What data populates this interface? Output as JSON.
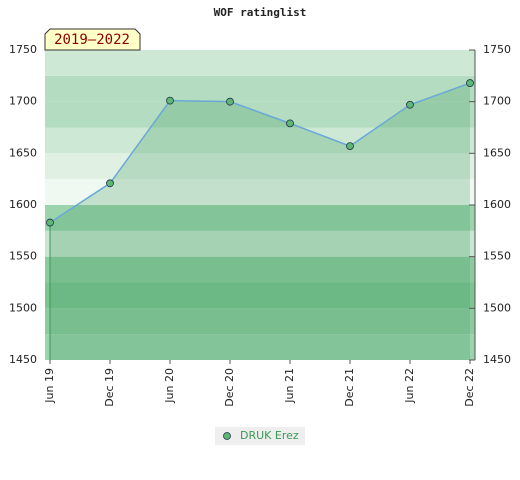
{
  "chart_data": {
    "type": "area",
    "title": "WOF ratinglist",
    "annotation": "2019–2022",
    "categories": [
      "Jun 19",
      "Dec 19",
      "Jun 20",
      "Dec 20",
      "Jun 21",
      "Dec 21",
      "Jun 22",
      "Dec 22"
    ],
    "series": [
      {
        "name": "DRUK Erez",
        "color": "#5cb874",
        "line_color": "#6aa8d8",
        "values": [
          1583,
          1621,
          1701,
          1700,
          1679,
          1657,
          1697,
          1718
        ]
      }
    ],
    "ylim": [
      1450,
      1750
    ],
    "yticks": [
      1450,
      1500,
      1550,
      1600,
      1650,
      1700,
      1750
    ],
    "right_axis": true
  }
}
